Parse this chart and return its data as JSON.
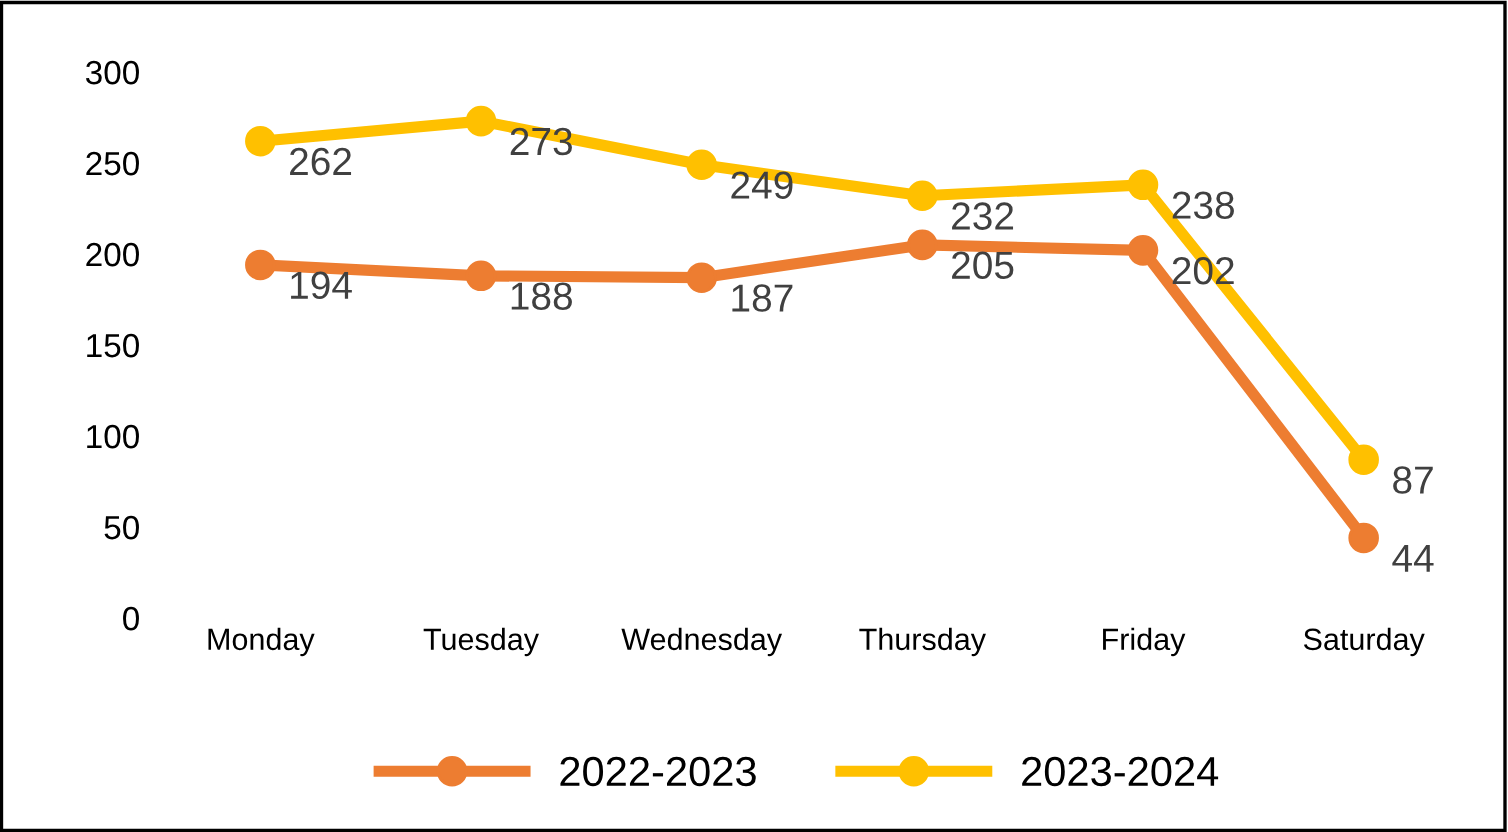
{
  "chart_data": {
    "type": "line",
    "categories": [
      "Monday",
      "Tuesday",
      "Wednesday",
      "Thursday",
      "Friday",
      "Saturday"
    ],
    "series": [
      {
        "name": "2022-2023",
        "color": "#ed7d31",
        "values": [
          194,
          188,
          187,
          205,
          202,
          44
        ]
      },
      {
        "name": "2023-2024",
        "color": "#ffc000",
        "values": [
          262,
          273,
          249,
          232,
          238,
          87
        ]
      }
    ],
    "ylim": [
      0,
      300
    ],
    "yticks": [
      0,
      50,
      100,
      150,
      200,
      250,
      300
    ],
    "grid": false,
    "legend": "bottom",
    "marker": "circle",
    "line_style": "solid",
    "data_labels": true
  }
}
